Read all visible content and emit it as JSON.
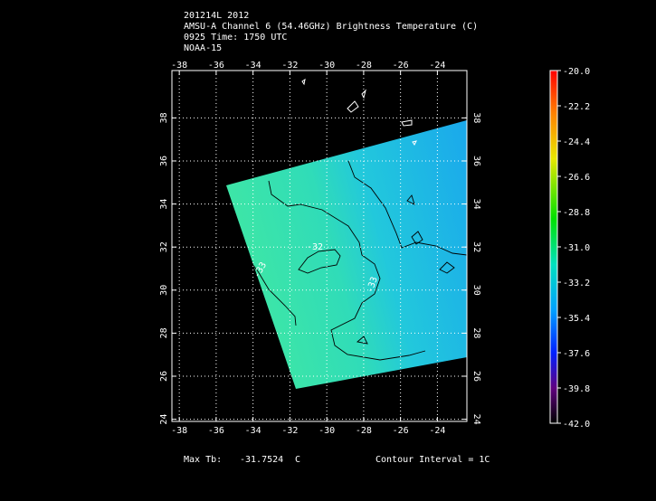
{
  "header": {
    "lines": [
      "201214L 2012",
      "AMSU-A Channel 6 (54.46GHz) Brightness Temperature (C)",
      "0925 Time: 1750 UTC",
      "NOAA-15"
    ]
  },
  "map": {
    "lonlim": [
      -38.4,
      -22.4
    ],
    "latlim": [
      23.9,
      40.2
    ],
    "lon_ticks": [
      -38,
      -36,
      -34,
      -32,
      -30,
      -28,
      -26,
      -24
    ],
    "lat_ticks": [
      24,
      26,
      28,
      30,
      32,
      34,
      36,
      38
    ],
    "contour_labels": [
      "-32",
      "-33",
      "-33"
    ]
  },
  "colorbar": {
    "lim": [
      -42,
      -20
    ],
    "ticks": [
      {
        "value": -20,
        "label": "-20.0"
      },
      -22.2,
      -24.4,
      -26.6,
      -28.8,
      {
        "value": -31,
        "label": "-31.0"
      },
      -33.2,
      -35.4,
      -37.6,
      -39.8,
      {
        "value": -42,
        "label": "-42.0"
      }
    ]
  },
  "footer": {
    "max_label": "Max Tb:",
    "max_value": -31.7524,
    "unit": "C",
    "contour_interval": "Contour Interval = 1C"
  }
}
